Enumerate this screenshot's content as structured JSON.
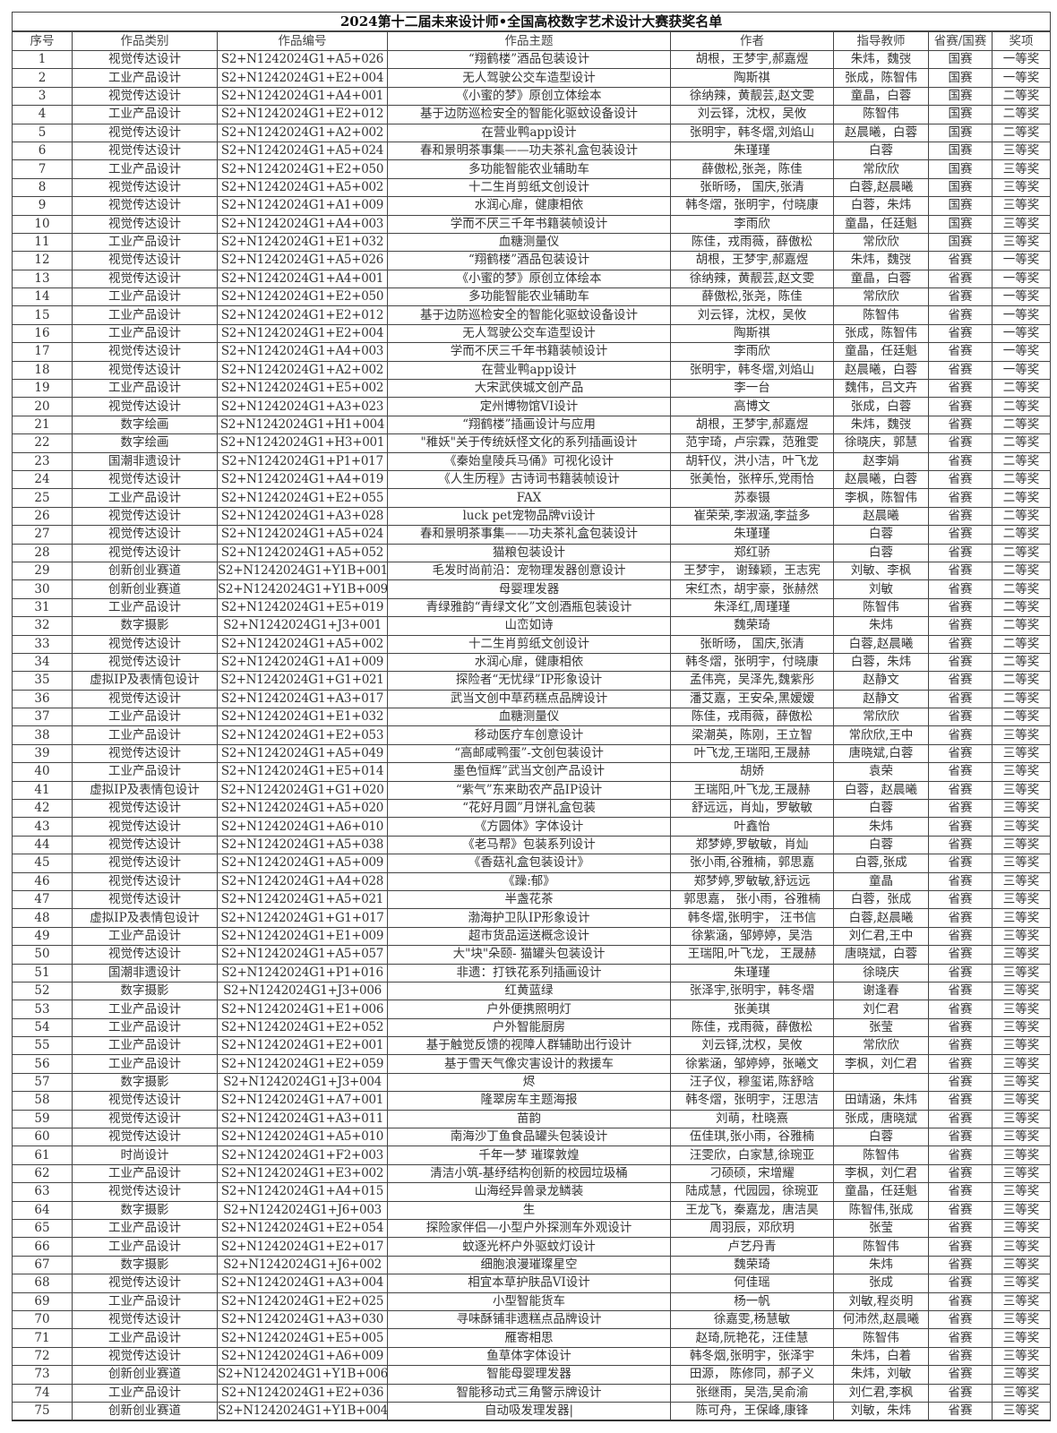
{
  "title": "2024第十二届未来设计师•全国高校数字艺术设计大赛获奖名单",
  "columns": [
    "序号",
    "作品类别",
    "作品编号",
    "作品主题",
    "作者",
    "指导教师",
    "省赛/国赛",
    "奖项"
  ],
  "rows": [
    [
      "1",
      "视觉传达设计",
      "S2+N1242024G1+A5+026",
      "“翔鹤楼”酒品包装设计",
      "胡根，王梦宇,郝嘉煜",
      "朱炜，魏弢",
      "国赛",
      "一等奖"
    ],
    [
      "2",
      "工业产品设计",
      "S2+N1242024G1+E2+004",
      "无人驾驶公交车造型设计",
      "陶斯祺",
      "张成，陈智伟",
      "国赛",
      "一等奖"
    ],
    [
      "3",
      "视觉传达设计",
      "S2+N1242024G1+A4+001",
      "《小蜜的梦》原创立体绘本",
      "徐纳辣，黄靓芸,赵文雯",
      "童晶，白蓉",
      "国赛",
      "二等奖"
    ],
    [
      "4",
      "工业产品设计",
      "S2+N1242024G1+E2+012",
      "基于边防巡检安全的智能化驱蚊设备设计",
      "刘云铎，沈权，吴攸",
      "陈智伟",
      "国赛",
      "二等奖"
    ],
    [
      "5",
      "视觉传达设计",
      "S2+N1242024G1+A2+002",
      "在营业鸭app设计",
      "张明宇，韩冬熠,刘焰山",
      "赵晨曦，白蓉",
      "国赛",
      "二等奖"
    ],
    [
      "6",
      "视觉传达设计",
      "S2+N1242024G1+A5+024",
      "春和景明茶事集——功夫茶礼盒包装设计",
      "朱瑾瑾",
      "白蓉",
      "国赛",
      "三等奖"
    ],
    [
      "7",
      "工业产品设计",
      "S2+N1242024G1+E2+050",
      "多功能智能农业辅助车",
      "薛傲松,张尧，陈佳",
      "常欣欣",
      "国赛",
      "三等奖"
    ],
    [
      "8",
      "视觉传达设计",
      "S2+N1242024G1+A5+002",
      "十二生肖剪纸文创设计",
      "张昕旸， 国庆,张清",
      "白蓉,赵晨曦",
      "国赛",
      "三等奖"
    ],
    [
      "9",
      "视觉传达设计",
      "S2+N1242024G1+A1+009",
      "水润心扉，健康相依",
      "韩冬熠，张明宇，付晓康",
      "白蓉，朱炜",
      "国赛",
      "三等奖"
    ],
    [
      "10",
      "视觉传达设计",
      "S2+N1242024G1+A4+003",
      "学而不厌三千年书籍装帧设计",
      "李雨欣",
      "童晶，任廷魁",
      "国赛",
      "三等奖"
    ],
    [
      "11",
      "工业产品设计",
      "S2+N1242024G1+E1+032",
      "血糖测量仪",
      "陈佳，戎雨薇，薛傲松",
      "常欣欣",
      "国赛",
      "三等奖"
    ],
    [
      "12",
      "视觉传达设计",
      "S2+N1242024G1+A5+026",
      "“翔鹤楼”酒品包装设计",
      "胡根，王梦宇,郝嘉煜",
      "朱炜，魏弢",
      "省赛",
      "一等奖"
    ],
    [
      "13",
      "视觉传达设计",
      "S2+N1242024G1+A4+001",
      "《小蜜的梦》原创立体绘本",
      "徐纳辣，黄靓芸,赵文雯",
      "童晶，白蓉",
      "省赛",
      "一等奖"
    ],
    [
      "14",
      "工业产品设计",
      "S2+N1242024G1+E2+050",
      "多功能智能农业辅助车",
      "薛傲松,张尧，陈佳",
      "常欣欣",
      "省赛",
      "一等奖"
    ],
    [
      "15",
      "工业产品设计",
      "S2+N1242024G1+E2+012",
      "基于边防巡检安全的智能化驱蚊设备设计",
      "刘云铎，沈权，吴攸",
      "陈智伟",
      "省赛",
      "一等奖"
    ],
    [
      "16",
      "工业产品设计",
      "S2+N1242024G1+E2+004",
      "无人驾驶公交车造型设计",
      "陶斯祺",
      "张成，陈智伟",
      "省赛",
      "一等奖"
    ],
    [
      "17",
      "视觉传达设计",
      "S2+N1242024G1+A4+003",
      "学而不厌三千年书籍装帧设计",
      "李雨欣",
      "童晶，任廷魁",
      "省赛",
      "一等奖"
    ],
    [
      "18",
      "视觉传达设计",
      "S2+N1242024G1+A2+002",
      "在营业鸭app设计",
      "张明宇，韩冬熠,刘焰山",
      "赵晨曦，白蓉",
      "省赛",
      "一等奖"
    ],
    [
      "19",
      "工业产品设计",
      "S2+N1242024G1+E5+002",
      "大宋武侠城文创产品",
      "李一台",
      "魏伟，吕文卉",
      "省赛",
      "二等奖"
    ],
    [
      "20",
      "视觉传达设计",
      "S2+N1242024G1+A3+023",
      "定州博物馆VI设计",
      "高博文",
      "张成，白蓉",
      "省赛",
      "二等奖"
    ],
    [
      "21",
      "数字绘画",
      "S2+N1242024G1+H1+004",
      "“翔鹤楼”插画设计与应用",
      "胡根，王梦宇,郝嘉煜",
      "朱炜，魏弢",
      "省赛",
      "二等奖"
    ],
    [
      "22",
      "数字绘画",
      "S2+N1242024G1+H3+001",
      "\"稚妖\"关于传统妖怪文化的系列插画设计",
      "范宇琦，卢宗霖，范雅雯",
      "徐晓庆，郭慧",
      "省赛",
      "二等奖"
    ],
    [
      "23",
      "国潮非遗设计",
      "S2+N1242024G1+P1+017",
      "《秦始皇陵兵马俑》可视化设计",
      "胡轩仪，洪小洁，叶飞龙",
      "赵李娟",
      "省赛",
      "二等奖"
    ],
    [
      "24",
      "视觉传达设计",
      "S2+N1242024G1+A4+019",
      "《人生历程》古诗词书籍装帧设计",
      "张美怡，张梓乐,党雨恰",
      "赵晨曦，白蓉",
      "省赛",
      "二等奖"
    ],
    [
      "25",
      "工业产品设计",
      "S2+N1242024G1+E2+055",
      "FAX",
      "苏泰镊",
      "李枫，陈智伟",
      "省赛",
      "二等奖"
    ],
    [
      "26",
      "视觉传达设计",
      "S2+N1242024G1+A3+028",
      "luck pet宠物品牌vi设计",
      "崔荣荣,李淑涵,李益多",
      "赵晨曦",
      "省赛",
      "二等奖"
    ],
    [
      "27",
      "视觉传达设计",
      "S2+N1242024G1+A5+024",
      "春和景明茶事集——功夫茶礼盒包装设计",
      "朱瑾瑾",
      "白蓉",
      "省赛",
      "二等奖"
    ],
    [
      "28",
      "视觉传达设计",
      "S2+N1242024G1+A5+052",
      "猫粮包装设计",
      "郑红骄",
      "白蓉",
      "省赛",
      "二等奖"
    ],
    [
      "29",
      "创新创业赛道",
      "S2+N1242024G1+Y1B+001",
      "毛发时尚前沿：宠物理发器创意设计",
      "王梦宇， 谢臻颖，王志宪",
      "刘敏、李枫",
      "省赛",
      "二等奖"
    ],
    [
      "30",
      "创新创业赛道",
      "S2+N1242024G1+Y1B+009",
      "母婴理发器",
      "宋红杰，胡宇豪，张赫然",
      "刘敏",
      "省赛",
      "二等奖"
    ],
    [
      "31",
      "工业产品设计",
      "S2+N1242024G1+E5+019",
      "青绿雅韵“青绿文化”文创酒瓶包装设计",
      "朱泽红,周瑾瑾",
      "陈智伟",
      "省赛",
      "二等奖"
    ],
    [
      "32",
      "数字摄影",
      "S2+N1242024G1+J3+001",
      "山峦如诗",
      "魏荣琦",
      "朱炜",
      "省赛",
      "二等奖"
    ],
    [
      "33",
      "视觉传达设计",
      "S2+N1242024G1+A5+002",
      "十二生肖剪纸文创设计",
      "张昕旸， 国庆,张清",
      "白蓉,赵晨曦",
      "省赛",
      "二等奖"
    ],
    [
      "34",
      "视觉传达设计",
      "S2+N1242024G1+A1+009",
      "水润心扉，健康相依",
      "韩冬熠，张明宇，付晓康",
      "白蓉，朱炜",
      "省赛",
      "二等奖"
    ],
    [
      "35",
      "虚拟IP及表情包设计",
      "S2+N1242024G1+G1+021",
      "探险者“无忧绿”IP形象设计",
      "孟伟亮，吴泽先,魏紫彤",
      "赵静文",
      "省赛",
      "二等奖"
    ],
    [
      "36",
      "视觉传达设计",
      "S2+N1242024G1+A3+017",
      "武当文创中草药糕点品牌设计",
      "潘艾嘉，王安朵,黑嫒嫒",
      "赵静文",
      "省赛",
      "二等奖"
    ],
    [
      "37",
      "工业产品设计",
      "S2+N1242024G1+E1+032",
      "血糖测量仪",
      "陈佳，戎雨薇，薛傲松",
      "常欣欣",
      "省赛",
      "二等奖"
    ],
    [
      "38",
      "工业产品设计",
      "S2+N1242024G1+E2+053",
      "移动医疗车创意设计",
      "梁潮英，陈刚，王立智",
      "常欣欣,王中",
      "省赛",
      "三等奖"
    ],
    [
      "39",
      "视觉传达设计",
      "S2+N1242024G1+A5+049",
      "“高邮咸鸭蛋”-文创包装设计",
      "叶飞龙,王瑞阳,王晟赫",
      "唐晓斌,白蓉",
      "省赛",
      "三等奖"
    ],
    [
      "40",
      "工业产品设计",
      "S2+N1242024G1+E5+014",
      "墨色恒辉”武当文创产品设计",
      "胡娇",
      "袁荣",
      "省赛",
      "三等奖"
    ],
    [
      "41",
      "虚拟IP及表情包设计",
      "S2+N1242024G1+G1+020",
      "“紫气”东来助农产品IP设计",
      "王瑞阳,叶飞龙,王晟赫",
      "白蓉，赵晨曦",
      "省赛",
      "三等奖"
    ],
    [
      "42",
      "视觉传达设计",
      "S2+N1242024G1+A5+020",
      "“花好月圆”月饼礼盒包装",
      "舒远远，肖灿，罗敏敏",
      "白蓉",
      "省赛",
      "三等奖"
    ],
    [
      "43",
      "视觉传达设计",
      "S2+N1242024G1+A6+010",
      "《方圆体》字体设计",
      "叶鑫怡",
      "朱炜",
      "省赛",
      "三等奖"
    ],
    [
      "44",
      "视觉传达设计",
      "S2+N1242024G1+A5+038",
      "《老马帮》包装系列设计",
      "郑梦婷,罗敏敏，肖灿",
      "白蓉",
      "省赛",
      "三等奖"
    ],
    [
      "45",
      "视觉传达设计",
      "S2+N1242024G1+A5+009",
      "《香菇礼盒包装设计》",
      "张小雨,谷雅楠，郭思嘉",
      "白蓉,张成",
      "省赛",
      "三等奖"
    ],
    [
      "46",
      "视觉传达设计",
      "S2+N1242024G1+A4+028",
      "《躁:郁》",
      "郑梦婷,罗敏敏,舒远远",
      "童晶",
      "省赛",
      "三等奖"
    ],
    [
      "47",
      "视觉传达设计",
      "S2+N1242024G1+A5+021",
      "半盏花茶",
      "郭思嘉， 张小雨，谷雅楠",
      "白蓉，张成",
      "省赛",
      "三等奖"
    ],
    [
      "48",
      "虚拟IP及表情包设计",
      "S2+N1242024G1+G1+017",
      "渤海护卫队IP形象设计",
      "韩冬熠,张明宇， 汪书信",
      "白蓉,赵晨曦",
      "省赛",
      "三等奖"
    ],
    [
      "49",
      "工业产品设计",
      "S2+N1242024G1+E1+009",
      "超市货品运送概念设计",
      "徐紫涵，邹婷婷，吴浩",
      "刘仁君,王中",
      "省赛",
      "三等奖"
    ],
    [
      "50",
      "视觉传达设计",
      "S2+N1242024G1+A5+057",
      "大\"块\"朵颐- 猫罐头包装设计",
      "王瑞阳,叶飞龙， 王晟赫",
      "唐晓斌，白蓉",
      "省赛",
      "三等奖"
    ],
    [
      "51",
      "国潮非遗设计",
      "S2+N1242024G1+P1+016",
      "非遗：打铁花系列插画设计",
      "朱瑾瑾",
      "徐晓庆",
      "省赛",
      "三等奖"
    ],
    [
      "52",
      "数字摄影",
      "S2+N1242024G1+J3+006",
      "红黄蓝绿",
      "张泽宇,张明宇，韩冬熠",
      "谢逢春",
      "省赛",
      "三等奖"
    ],
    [
      "53",
      "工业产品设计",
      "S2+N1242024G1+E1+006",
      "户外便携照明灯",
      "张美琪",
      "刘仁君",
      "省赛",
      "三等奖"
    ],
    [
      "54",
      "工业产品设计",
      "S2+N1242024G1+E2+052",
      "户外智能厨房",
      "陈佳，戎雨薇，薛傲松",
      "张莹",
      "省赛",
      "三等奖"
    ],
    [
      "55",
      "工业产品设计",
      "S2+N1242024G1+E2+001",
      "基于触觉反馈的视障人群辅助出行设计",
      "刘云铎,沈权，吴攸",
      "常欣欣",
      "省赛",
      "三等奖"
    ],
    [
      "56",
      "工业产品设计",
      "S2+N1242024G1+E2+059",
      "基于雪天气像灾害设计的救援车",
      "徐紫涵，邹婷婷，张曦文",
      "李枫，刘仁君",
      "省赛",
      "三等奖"
    ],
    [
      "57",
      "数字摄影",
      "S2+N1242024G1+J3+004",
      "烬",
      "汪子仪，穆玺诺,陈舒晗",
      "",
      "省赛",
      "三等奖"
    ],
    [
      "58",
      "视觉传达设计",
      "S2+N1242024G1+A7+001",
      "隆翠房车主题海报",
      "韩冬熠，张明宇，汪思洁",
      "田靖涵，朱炜",
      "省赛",
      "三等奖"
    ],
    [
      "59",
      "视觉传达设计",
      "S2+N1242024G1+A3+011",
      "苗韵",
      "刘萌，杜晓熹",
      "张成，唐晓斌",
      "省赛",
      "三等奖"
    ],
    [
      "60",
      "视觉传达设计",
      "S2+N1242024G1+A5+010",
      "南海沙丁鱼食品罐头包装设计",
      "伍佳琪,张小雨，谷雅楠",
      "白蓉",
      "省赛",
      "三等奖"
    ],
    [
      "61",
      "时尚设计",
      "S2+N1242024G1+F2+003",
      "千年一梦 璀璨敦煌",
      "汪雯欣，白家慧,徐琬亚",
      "陈智伟",
      "省赛",
      "三等奖"
    ],
    [
      "62",
      "工业产品设计",
      "S2+N1242024G1+E3+002",
      "清洁小筑-基纾结构创新的校园垃圾桶",
      "刁硕硕，宋增耀",
      "李枫，刘仁君",
      "省赛",
      "三等奖"
    ],
    [
      "63",
      "视觉传达设计",
      "S2+N1242024G1+A4+015",
      "山海经异兽录龙鳞装",
      "陆成慧，代园园，徐琬亚",
      "童晶，任廷魁",
      "省赛",
      "三等奖"
    ],
    [
      "64",
      "数字摄影",
      "S2+N1242024G1+J6+003",
      "生",
      "王龙飞，秦嘉龙，唐洁昊",
      "陈智伟,张成",
      "省赛",
      "三等奖"
    ],
    [
      "65",
      "工业产品设计",
      "S2+N1242024G1+E2+054",
      "探险家伴侣—小型户外探测车外观设计",
      "周羽辰，邓欣玥",
      "张莹",
      "省赛",
      "三等奖"
    ],
    [
      "66",
      "工业产品设计",
      "S2+N1242024G1+E2+017",
      "蚊逐光杯户外驱蚊灯设计",
      "卢艺丹青",
      "陈智伟",
      "省赛",
      "三等奖"
    ],
    [
      "67",
      "数字摄影",
      "S2+N1242024G1+J6+002",
      "细胞浪漫璀璨星空",
      "魏荣琦",
      "朱炜",
      "省赛",
      "三等奖"
    ],
    [
      "68",
      "视觉传达设计",
      "S2+N1242024G1+A3+004",
      "相宜本草护肤品VI设计",
      "何佳瑶",
      "张成",
      "省赛",
      "三等奖"
    ],
    [
      "69",
      "工业产品设计",
      "S2+N1242024G1+E2+025",
      "小型智能货车",
      "杨一帆",
      "刘敏,程炎明",
      "省赛",
      "三等奖"
    ],
    [
      "70",
      "视觉传达设计",
      "S2+N1242024G1+A3+030",
      "寻味酥铺非遗糕点品牌设计",
      "徐嘉雯,杨慧敏",
      "何沛然,赵晨曦",
      "省赛",
      "三等奖"
    ],
    [
      "71",
      "工业产品设计",
      "S2+N1242024G1+E5+005",
      "雁寄相思",
      "赵琦,阮艳花，汪佳慧",
      "陈智伟",
      "省赛",
      "三等奖"
    ],
    [
      "72",
      "视觉传达设计",
      "S2+N1242024G1+A6+009",
      "鱼草体字体设计",
      "韩冬烟,张明宇，张泽宇",
      "朱炜，白着",
      "省赛",
      "三等奖"
    ],
    [
      "73",
      "创新创业赛道",
      "S2+N1242024G1+Y1B+006",
      "智能母婴理发器",
      "田源， 陈修同，郝子义",
      "朱炜，刘敏",
      "省赛",
      "三等奖"
    ],
    [
      "74",
      "工业产品设计",
      "S2+N1242024G1+E2+036",
      "智能移动式三角警示牌设计",
      "张继雨，吴浩,吴俞渝",
      "刘仁君,李枫",
      "省赛",
      "三等奖"
    ],
    [
      "75",
      "创新创业赛道",
      "S2+N1242024G1+Y1B+004",
      "自动吸发理发器|",
      "陈可舟，王保峰,康锋",
      "刘敏，朱炜",
      "省赛",
      "三等奖"
    ]
  ]
}
